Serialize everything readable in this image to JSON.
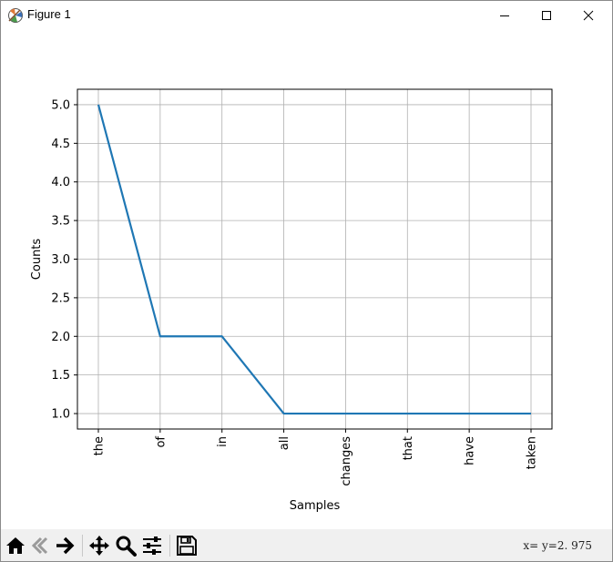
{
  "window": {
    "title": "Figure 1",
    "icon": "matplotlib-icon",
    "controls": [
      "minimize-icon",
      "maximize-icon",
      "close-icon"
    ]
  },
  "toolbar": {
    "buttons": [
      {
        "name": "home-button",
        "icon": "home-icon"
      },
      {
        "name": "back-button",
        "icon": "arrow-left-icon"
      },
      {
        "name": "forward-button",
        "icon": "arrow-right-icon"
      },
      {
        "name": "pan-button",
        "icon": "move-icon"
      },
      {
        "name": "zoom-button",
        "icon": "magnifier-icon"
      },
      {
        "name": "configure-subplots-button",
        "icon": "sliders-icon"
      },
      {
        "name": "save-button",
        "icon": "floppy-disk-icon"
      }
    ],
    "coords_text": "x=  y=2. 975"
  },
  "chart_data": {
    "type": "line",
    "categories": [
      "the",
      "of",
      "in",
      "all",
      "changes",
      "that",
      "have",
      "taken"
    ],
    "values": [
      5,
      2,
      2,
      1,
      1,
      1,
      1,
      1
    ],
    "xlabel": "Samples",
    "ylabel": "Counts",
    "ylim": [
      0.8,
      5.2
    ],
    "yticks": [
      1.0,
      1.5,
      2.0,
      2.5,
      3.0,
      3.5,
      4.0,
      4.5,
      5.0
    ],
    "ytick_labels": [
      "1.0",
      "1.5",
      "2.0",
      "2.5",
      "3.0",
      "3.5",
      "4.0",
      "4.5",
      "5.0"
    ],
    "grid": true,
    "line_color": "#1f77b4"
  }
}
